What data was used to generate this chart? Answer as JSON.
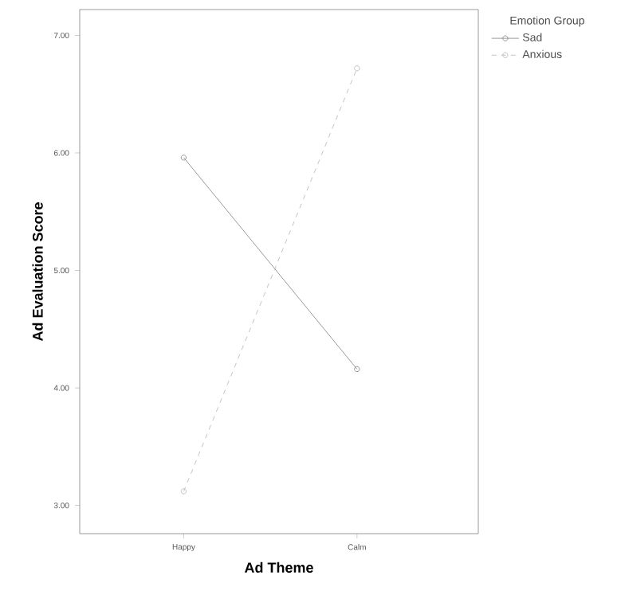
{
  "chart_data": {
    "type": "line",
    "xlabel": "Ad Theme",
    "ylabel": "Ad Evaluation Score",
    "legend_title": "Emotion Group",
    "categories": [
      "Happy",
      "Calm"
    ],
    "series": [
      {
        "name": "Sad",
        "color": "#808080",
        "values": [
          5.96,
          4.16
        ],
        "line_style": "solid"
      },
      {
        "name": "Anxious",
        "color": "#b4b4b4",
        "values": [
          3.12,
          6.72
        ],
        "line_style": "dashed"
      }
    ],
    "ylim": [
      2.76,
      7.22
    ],
    "yticks": [
      {
        "value": 3,
        "label": "3.00"
      },
      {
        "value": 4,
        "label": "4.00"
      },
      {
        "value": 5,
        "label": "5.00"
      },
      {
        "value": 6,
        "label": "6.00"
      },
      {
        "value": 7,
        "label": "7.00"
      }
    ],
    "marker": "circle",
    "legend": "right",
    "grid": false
  }
}
